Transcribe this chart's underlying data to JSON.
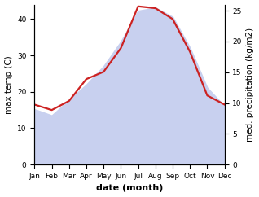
{
  "months": [
    "Jan",
    "Feb",
    "Mar",
    "Apr",
    "May",
    "Jun",
    "Jul",
    "Aug",
    "Sep",
    "Oct",
    "Nov",
    "Dec"
  ],
  "month_positions": [
    1,
    2,
    3,
    4,
    5,
    6,
    7,
    8,
    9,
    10,
    11,
    12
  ],
  "temperature": [
    16.5,
    15.0,
    17.5,
    23.5,
    25.5,
    32.0,
    43.5,
    43.0,
    40.0,
    31.0,
    19.0,
    16.5
  ],
  "precipitation": [
    9.0,
    8.0,
    10.5,
    13.0,
    16.0,
    20.0,
    25.0,
    25.5,
    24.0,
    19.0,
    12.5,
    9.5
  ],
  "temp_ylim": [
    0,
    44
  ],
  "precip_ylim": [
    0,
    26
  ],
  "temp_yticks": [
    0,
    10,
    20,
    30,
    40
  ],
  "precip_yticks": [
    0,
    5,
    10,
    15,
    20,
    25
  ],
  "fill_color": "#c8d0ef",
  "fill_alpha": 1.0,
  "line_color": "#cc2222",
  "line_width": 1.6,
  "xlabel": "date (month)",
  "ylabel_left": "max temp (C)",
  "ylabel_right": "med. precipitation (kg/m2)",
  "background_color": "#ffffff",
  "xlabel_fontsize": 8,
  "ylabel_fontsize": 7.5,
  "tick_fontsize": 6.5
}
